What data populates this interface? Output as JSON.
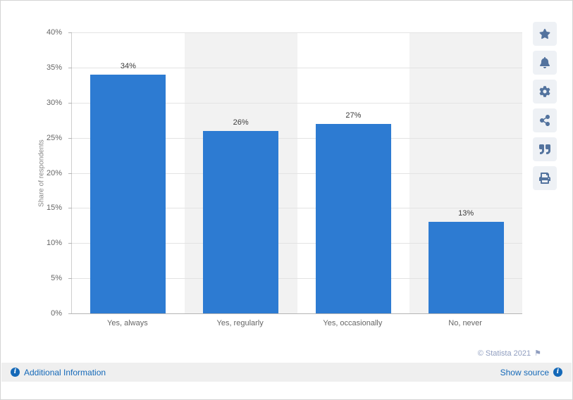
{
  "chart_data": {
    "type": "bar",
    "title": "",
    "categories": [
      "Yes, always",
      "Yes, regularly",
      "Yes, occasionally",
      "No, never"
    ],
    "values": [
      34,
      26,
      27,
      13
    ],
    "value_labels": [
      "34%",
      "26%",
      "27%",
      "13%"
    ],
    "xlabel": "",
    "ylabel": "Share of respondents",
    "ylim": [
      0,
      40
    ],
    "ytick_step": 5,
    "ytick_suffix": "%",
    "grid": true,
    "legend": false,
    "bar_color": "#2d7bd2",
    "band_colors": [
      "#ffffff",
      "#f2f2f2"
    ]
  },
  "toolbar": {
    "buttons": [
      {
        "label": "favorite",
        "icon": "star-icon"
      },
      {
        "label": "alerts",
        "icon": "bell-icon"
      },
      {
        "label": "settings",
        "icon": "gear-icon"
      },
      {
        "label": "share",
        "icon": "share-icon"
      },
      {
        "label": "cite",
        "icon": "quote-icon"
      },
      {
        "label": "print",
        "icon": "print-icon"
      }
    ]
  },
  "footer": {
    "copyright": "© Statista 2021",
    "additional_info_label": "Additional Information",
    "show_source_label": "Show source"
  },
  "icons": {
    "flag_glyph": "⚑",
    "info_glyph": "i"
  },
  "colors": {
    "bar": "#2d7bd2",
    "link": "#1569b8",
    "copyright_text": "#8f9dbf",
    "toolbar_icon": "#53739e",
    "toolbar_bg": "#eef1f5",
    "footer_bar_bg": "#efefef"
  }
}
